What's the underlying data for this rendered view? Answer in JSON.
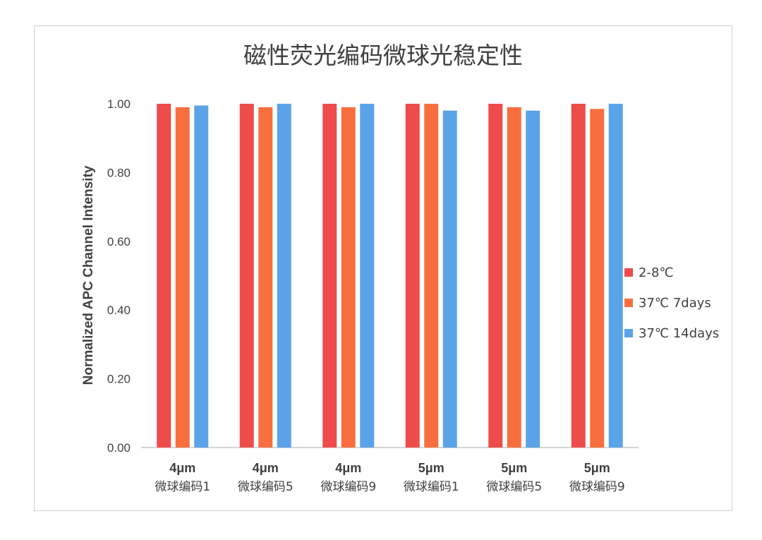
{
  "chart_data": {
    "type": "bar",
    "title": "磁性荧光编码微球光稳定性",
    "ylabel": "Normalized APC Channel Intensity",
    "xlabel": "",
    "ylim": [
      0,
      1
    ],
    "yticks": [
      "0.00",
      "0.20",
      "0.40",
      "0.60",
      "0.80",
      "1.00"
    ],
    "categories": [
      {
        "line1": "4μm",
        "line2": "微球编码1"
      },
      {
        "line1": "4μm",
        "line2": "微球编码5"
      },
      {
        "line1": "4μm",
        "line2": "微球编码9"
      },
      {
        "line1": "5μm",
        "line2": "微球编码1"
      },
      {
        "line1": "5μm",
        "line2": "微球编码5"
      },
      {
        "line1": "5μm",
        "line2": "微球编码9"
      }
    ],
    "series": [
      {
        "name": "2-8℃",
        "color": "#ee4b4b",
        "values": [
          1.0,
          1.0,
          1.0,
          1.0,
          1.0,
          1.0
        ]
      },
      {
        "name": "37℃ 7days",
        "color": "#f96e3e",
        "values": [
          0.99,
          0.99,
          0.99,
          1.0,
          0.99,
          0.985
        ]
      },
      {
        "name": "37℃ 14days",
        "color": "#5ba3e8",
        "values": [
          0.995,
          1.0,
          1.0,
          0.98,
          0.98,
          1.0
        ]
      }
    ],
    "legend": "right",
    "grid": false
  }
}
